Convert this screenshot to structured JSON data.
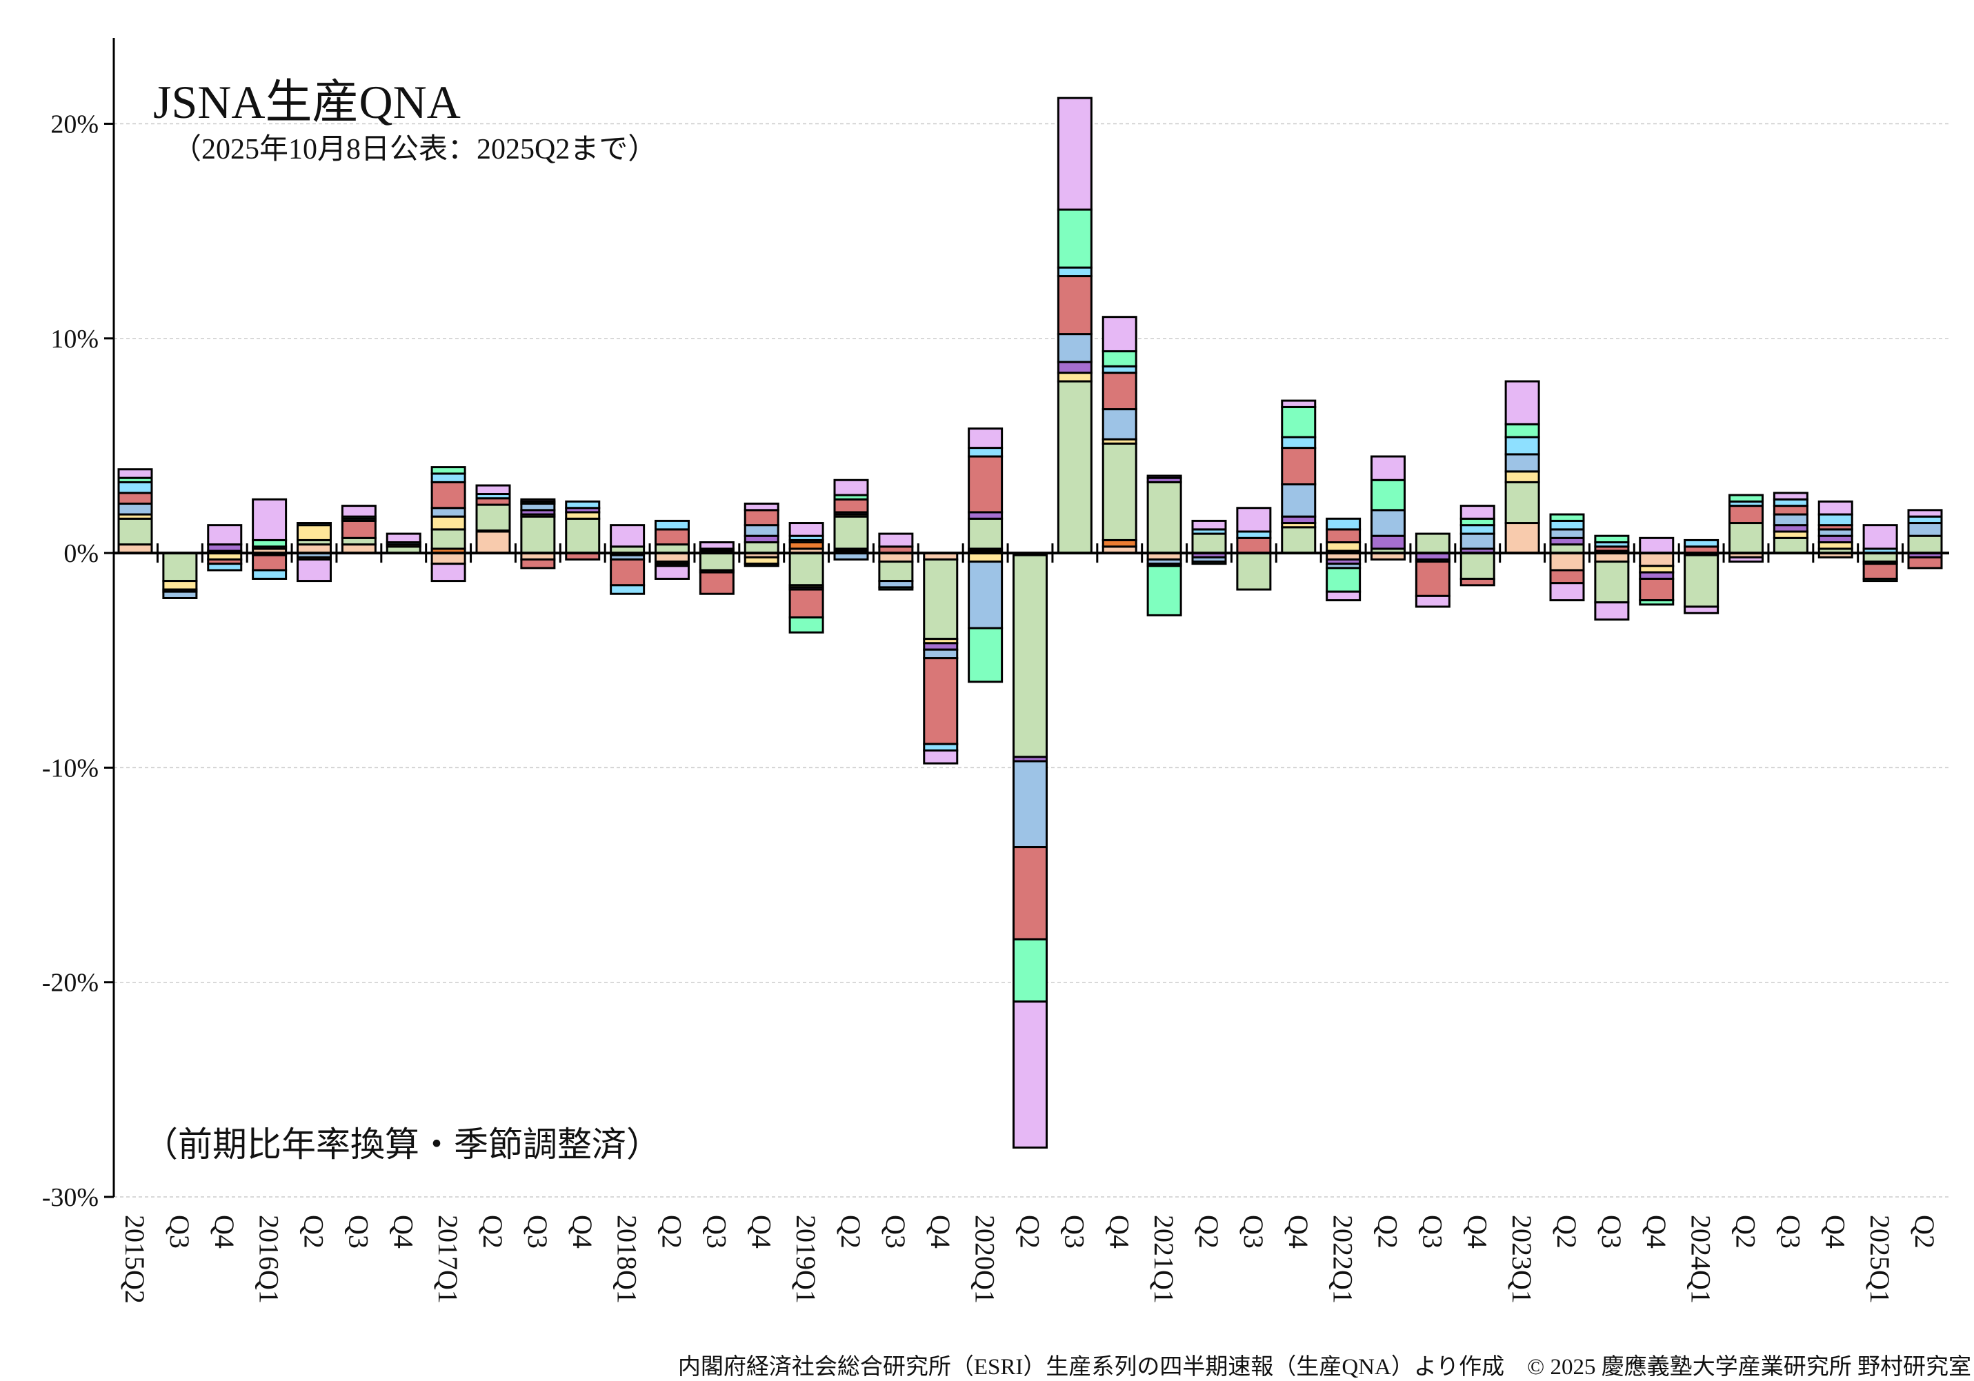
{
  "chart_data": {
    "type": "bar",
    "stacked": true,
    "title": "JSNA生産QNA",
    "subtitle": "（2025年10月8日公表：2025Q2まで）",
    "note": "（前期比年率換算・季節調整済）",
    "footer": "内閣府経済社会総合研究所（ESRI）生産系列の四半期速報（生産QNA）より作成　© 2025 慶應義塾大学産業研究所 野村研究室",
    "ylim": [
      -30,
      24
    ],
    "yticks": [
      -30,
      -20,
      -10,
      0,
      10,
      20
    ],
    "ytick_labels": [
      "-30%",
      "-20%",
      "-10%",
      "0%",
      "10%",
      "20%"
    ],
    "grid": "horizontal dashed",
    "legend": "none",
    "categories": [
      "2015Q2",
      "Q3",
      "Q4",
      "2016Q1",
      "Q2",
      "Q3",
      "Q4",
      "2017Q1",
      "Q2",
      "Q3",
      "Q4",
      "2018Q1",
      "Q2",
      "Q3",
      "Q4",
      "2019Q1",
      "Q2",
      "Q3",
      "Q4",
      "2020Q1",
      "Q2",
      "Q3",
      "Q4",
      "2021Q1",
      "Q2",
      "Q3",
      "Q4",
      "2022Q1",
      "Q2",
      "Q3",
      "Q4",
      "2023Q1",
      "Q2",
      "Q3",
      "Q4",
      "2024Q1",
      "Q2",
      "Q3",
      "Q4",
      "2025Q1",
      "Q2"
    ],
    "series": [
      {
        "color": "#f8cbad",
        "values": [
          0.4,
          0,
          0.1,
          0.2,
          0.4,
          0.4,
          0,
          -0.5,
          1.0,
          -0.3,
          0,
          0,
          -0.4,
          0,
          -0.2,
          0.2,
          0.1,
          -0.4,
          -0.3,
          0.1,
          -0.1,
          0,
          0.3,
          -0.3,
          0,
          0,
          0,
          -0.3,
          -0.3,
          0,
          0,
          1.4,
          -0.8,
          -0.4,
          -0.6,
          -0.1,
          -0.2,
          0,
          -0.2,
          0,
          0
        ]
      },
      {
        "color": "#ed7d31",
        "values": [
          0,
          0,
          0,
          0,
          0,
          0,
          0,
          0.2,
          0.05,
          0,
          0,
          -0.1,
          0,
          0,
          0,
          0.3,
          0.1,
          0,
          0,
          0.1,
          0,
          0,
          0.3,
          0,
          0,
          0,
          0,
          0.1,
          0,
          0,
          0,
          0,
          0,
          0,
          0,
          0,
          0,
          0,
          0,
          0,
          0
        ]
      },
      {
        "color": "#c5e0b4",
        "values": [
          1.2,
          -1.3,
          0,
          0,
          0.2,
          0.3,
          0.3,
          0.9,
          1.2,
          1.7,
          1.6,
          0.3,
          0.4,
          -0.8,
          0.5,
          -1.5,
          1.5,
          -0.9,
          -3.7,
          1.4,
          -9.4,
          8.0,
          4.5,
          3.3,
          0.9,
          -1.7,
          1.2,
          0,
          0.2,
          0.9,
          -1.2,
          1.9,
          0.4,
          -1.9,
          0,
          -2.4,
          1.4,
          0.7,
          0.2,
          -0.4,
          0.8
        ]
      },
      {
        "color": "#ffe699",
        "values": [
          0.2,
          -0.4,
          -0.3,
          -0.1,
          0.7,
          0,
          0,
          0.6,
          0,
          0.1,
          0.3,
          0,
          -0.1,
          0.1,
          -0.3,
          -0.1,
          0.1,
          0,
          -0.2,
          -0.4,
          0,
          0.4,
          0.2,
          0,
          0,
          0,
          0.2,
          0.4,
          0,
          0,
          0,
          0.5,
          0,
          0.1,
          -0.3,
          0,
          0,
          0.3,
          0.3,
          0,
          0
        ]
      },
      {
        "color": "#a66fd0",
        "values": [
          0,
          -0.1,
          0.3,
          0,
          0,
          0,
          0,
          0,
          0,
          0.2,
          0.2,
          0,
          0,
          0.1,
          0.3,
          -0.1,
          0.1,
          0,
          -0.3,
          0.3,
          -0.2,
          0.5,
          0,
          0.2,
          -0.2,
          0,
          0.3,
          -0.2,
          0.6,
          -0.3,
          0.2,
          0,
          0.3,
          0,
          -0.3,
          0,
          0,
          0.3,
          0.3,
          0,
          -0.2
        ]
      },
      {
        "color": "#9dc3e6",
        "values": [
          0.5,
          -0.3,
          0,
          0.1,
          -0.2,
          0,
          0,
          0.4,
          0,
          0.3,
          0,
          -0.2,
          -0.1,
          -0.1,
          0.5,
          0.1,
          -0.3,
          -0.3,
          -0.4,
          -3.1,
          -4.0,
          1.3,
          1.4,
          -0.2,
          -0.2,
          0,
          1.5,
          -0.2,
          1.2,
          -0.1,
          0.7,
          0.8,
          0.4,
          0,
          0,
          0,
          0,
          0.5,
          0.3,
          -0.1,
          0.6
        ]
      },
      {
        "color": "#d97777",
        "values": [
          0.5,
          0,
          -0.2,
          -0.7,
          -0.1,
          0.8,
          0.1,
          1.2,
          0.3,
          -0.4,
          -0.3,
          -1.2,
          0.7,
          -1.0,
          0.7,
          -1.3,
          0.6,
          0.3,
          -4.0,
          2.6,
          -4.3,
          2.7,
          1.7,
          0,
          0,
          0.7,
          1.7,
          0.6,
          0,
          -1.6,
          -0.3,
          0,
          -0.6,
          0.2,
          -1.0,
          0.3,
          0.8,
          0.4,
          0.2,
          -0.7,
          -0.5
        ]
      },
      {
        "color": "#8ee0ff",
        "values": [
          0.5,
          0,
          -0.3,
          -0.4,
          0.1,
          0.1,
          0.1,
          0.4,
          0.2,
          0,
          0.3,
          -0.4,
          0.4,
          0,
          -0.1,
          0.2,
          0,
          0,
          -0.3,
          0.4,
          0,
          0.4,
          0.3,
          -0.1,
          0.2,
          0.3,
          0.5,
          0.5,
          0,
          0,
          0.4,
          0.8,
          0.4,
          0.2,
          0,
          0.3,
          0.2,
          0.3,
          0.5,
          0.2,
          0.3
        ]
      },
      {
        "color": "#7fffbf",
        "values": [
          0.2,
          0,
          0,
          0.3,
          0,
          0.1,
          0,
          0.3,
          0,
          0.1,
          0,
          0,
          0,
          0,
          0,
          -0.7,
          0.2,
          -0.1,
          0,
          -2.5,
          -2.9,
          2.7,
          0.7,
          -2.3,
          -0.1,
          0,
          1.4,
          -1.1,
          1.4,
          0,
          0.3,
          0.6,
          0.3,
          0.3,
          -0.2,
          0,
          0.3,
          0,
          0,
          -0.1,
          0
        ]
      },
      {
        "color": "#e6b8f5",
        "values": [
          0.4,
          0,
          0.9,
          1.9,
          -1.0,
          0.5,
          0.4,
          -0.8,
          0.4,
          0.1,
          0,
          1.0,
          -0.6,
          0.3,
          0.3,
          0.6,
          0.7,
          0.6,
          -0.6,
          0.9,
          -6.8,
          5.2,
          1.6,
          0.1,
          0.4,
          1.1,
          0.3,
          -0.4,
          1.1,
          -0.5,
          0.6,
          2.0,
          -0.8,
          -0.8,
          0.7,
          -0.3,
          -0.2,
          0.3,
          0.6,
          1.1,
          0.3
        ]
      }
    ]
  }
}
